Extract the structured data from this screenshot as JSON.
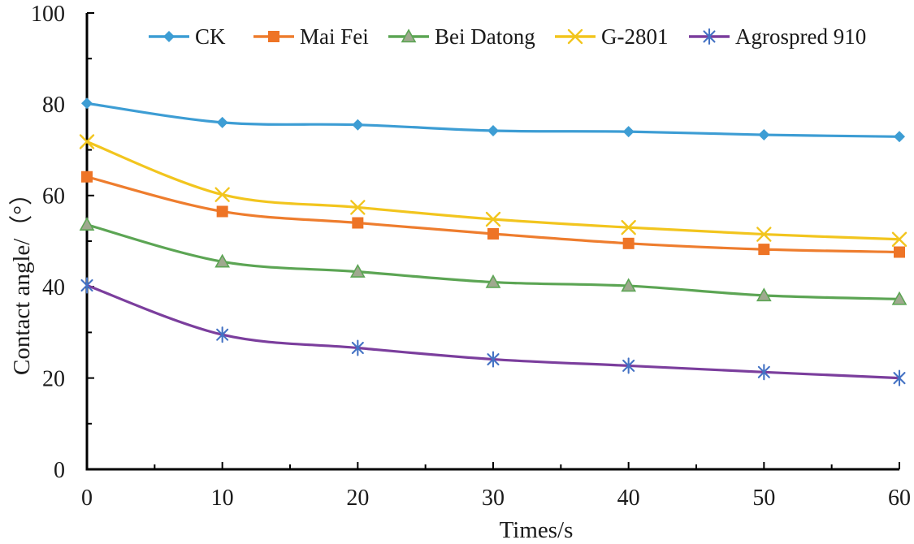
{
  "figure": {
    "background": "#ffffff",
    "axis_color": "#000000",
    "text_color": "#1a1a1a"
  },
  "chart_data": {
    "type": "line",
    "title": "",
    "xlabel": "Times/s",
    "ylabel": "Contact angle/（°）",
    "x": [
      0,
      10,
      20,
      30,
      40,
      50,
      60
    ],
    "xlim": [
      0,
      60
    ],
    "ylim": [
      0,
      100
    ],
    "x_major_ticks": [
      0,
      10,
      20,
      30,
      40,
      50,
      60
    ],
    "x_minor_step": 5,
    "y_major_ticks": [
      0,
      20,
      40,
      60,
      80,
      100
    ],
    "y_minor_step": 10,
    "grid": false,
    "line_smoothing": true,
    "legend_position": "top-horizontal",
    "series": [
      {
        "name": "CK",
        "marker": "diamond",
        "color": "#3D9DD4",
        "marker_color": "#3D9DD4",
        "values": [
          80.2,
          76.0,
          75.5,
          74.2,
          74.0,
          73.3,
          72.9
        ]
      },
      {
        "name": "Mai Fei",
        "marker": "square",
        "color": "#EE7D2E",
        "marker_color": "#EE7426",
        "values": [
          64.1,
          56.5,
          54.0,
          51.6,
          49.5,
          48.2,
          47.6
        ]
      },
      {
        "name": "Bei Datong",
        "marker": "triangle",
        "color": "#5CA554",
        "marker_color": "#9FA98F",
        "marker_stroke": "#5CA554",
        "values": [
          53.6,
          45.5,
          43.3,
          41.0,
          40.2,
          38.1,
          37.3
        ]
      },
      {
        "name": "G-2801",
        "marker": "x",
        "color": "#F2C51E",
        "marker_color": "#F2C51E",
        "values": [
          71.8,
          60.2,
          57.4,
          54.8,
          53.0,
          51.5,
          50.4
        ]
      },
      {
        "name": "Agrospred 910",
        "marker": "asterisk",
        "color": "#7B3E9D",
        "marker_color": "#4472C4",
        "values": [
          40.3,
          29.5,
          26.6,
          24.1,
          22.7,
          21.3,
          20.0
        ]
      }
    ]
  }
}
